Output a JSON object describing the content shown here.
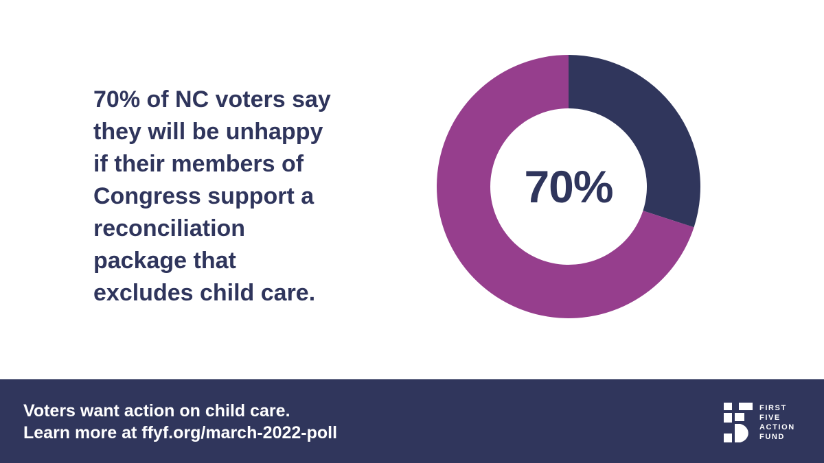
{
  "headline": {
    "lines": [
      "70% of NC voters say",
      "they will be unhappy",
      "if their members of",
      "Congress support a",
      "reconciliation",
      "package that",
      "excludes child care."
    ]
  },
  "chart_data": {
    "type": "pie",
    "title": "",
    "center_label": "70%",
    "slices": [
      {
        "label": "",
        "value": 70,
        "color": "#963e8d"
      },
      {
        "label": "",
        "value": 30,
        "color": "#30365c"
      }
    ]
  },
  "footer": {
    "line1": "Voters want action on child care.",
    "line2": "Learn more at ffyf.org/march-2022-poll"
  },
  "logo": {
    "words": [
      "FIRST",
      "FIVE",
      "ACTION",
      "FUND"
    ]
  },
  "colors": {
    "navy": "#30365c",
    "purple": "#963e8d",
    "text": "#2f355c",
    "background": "#ffffff"
  }
}
